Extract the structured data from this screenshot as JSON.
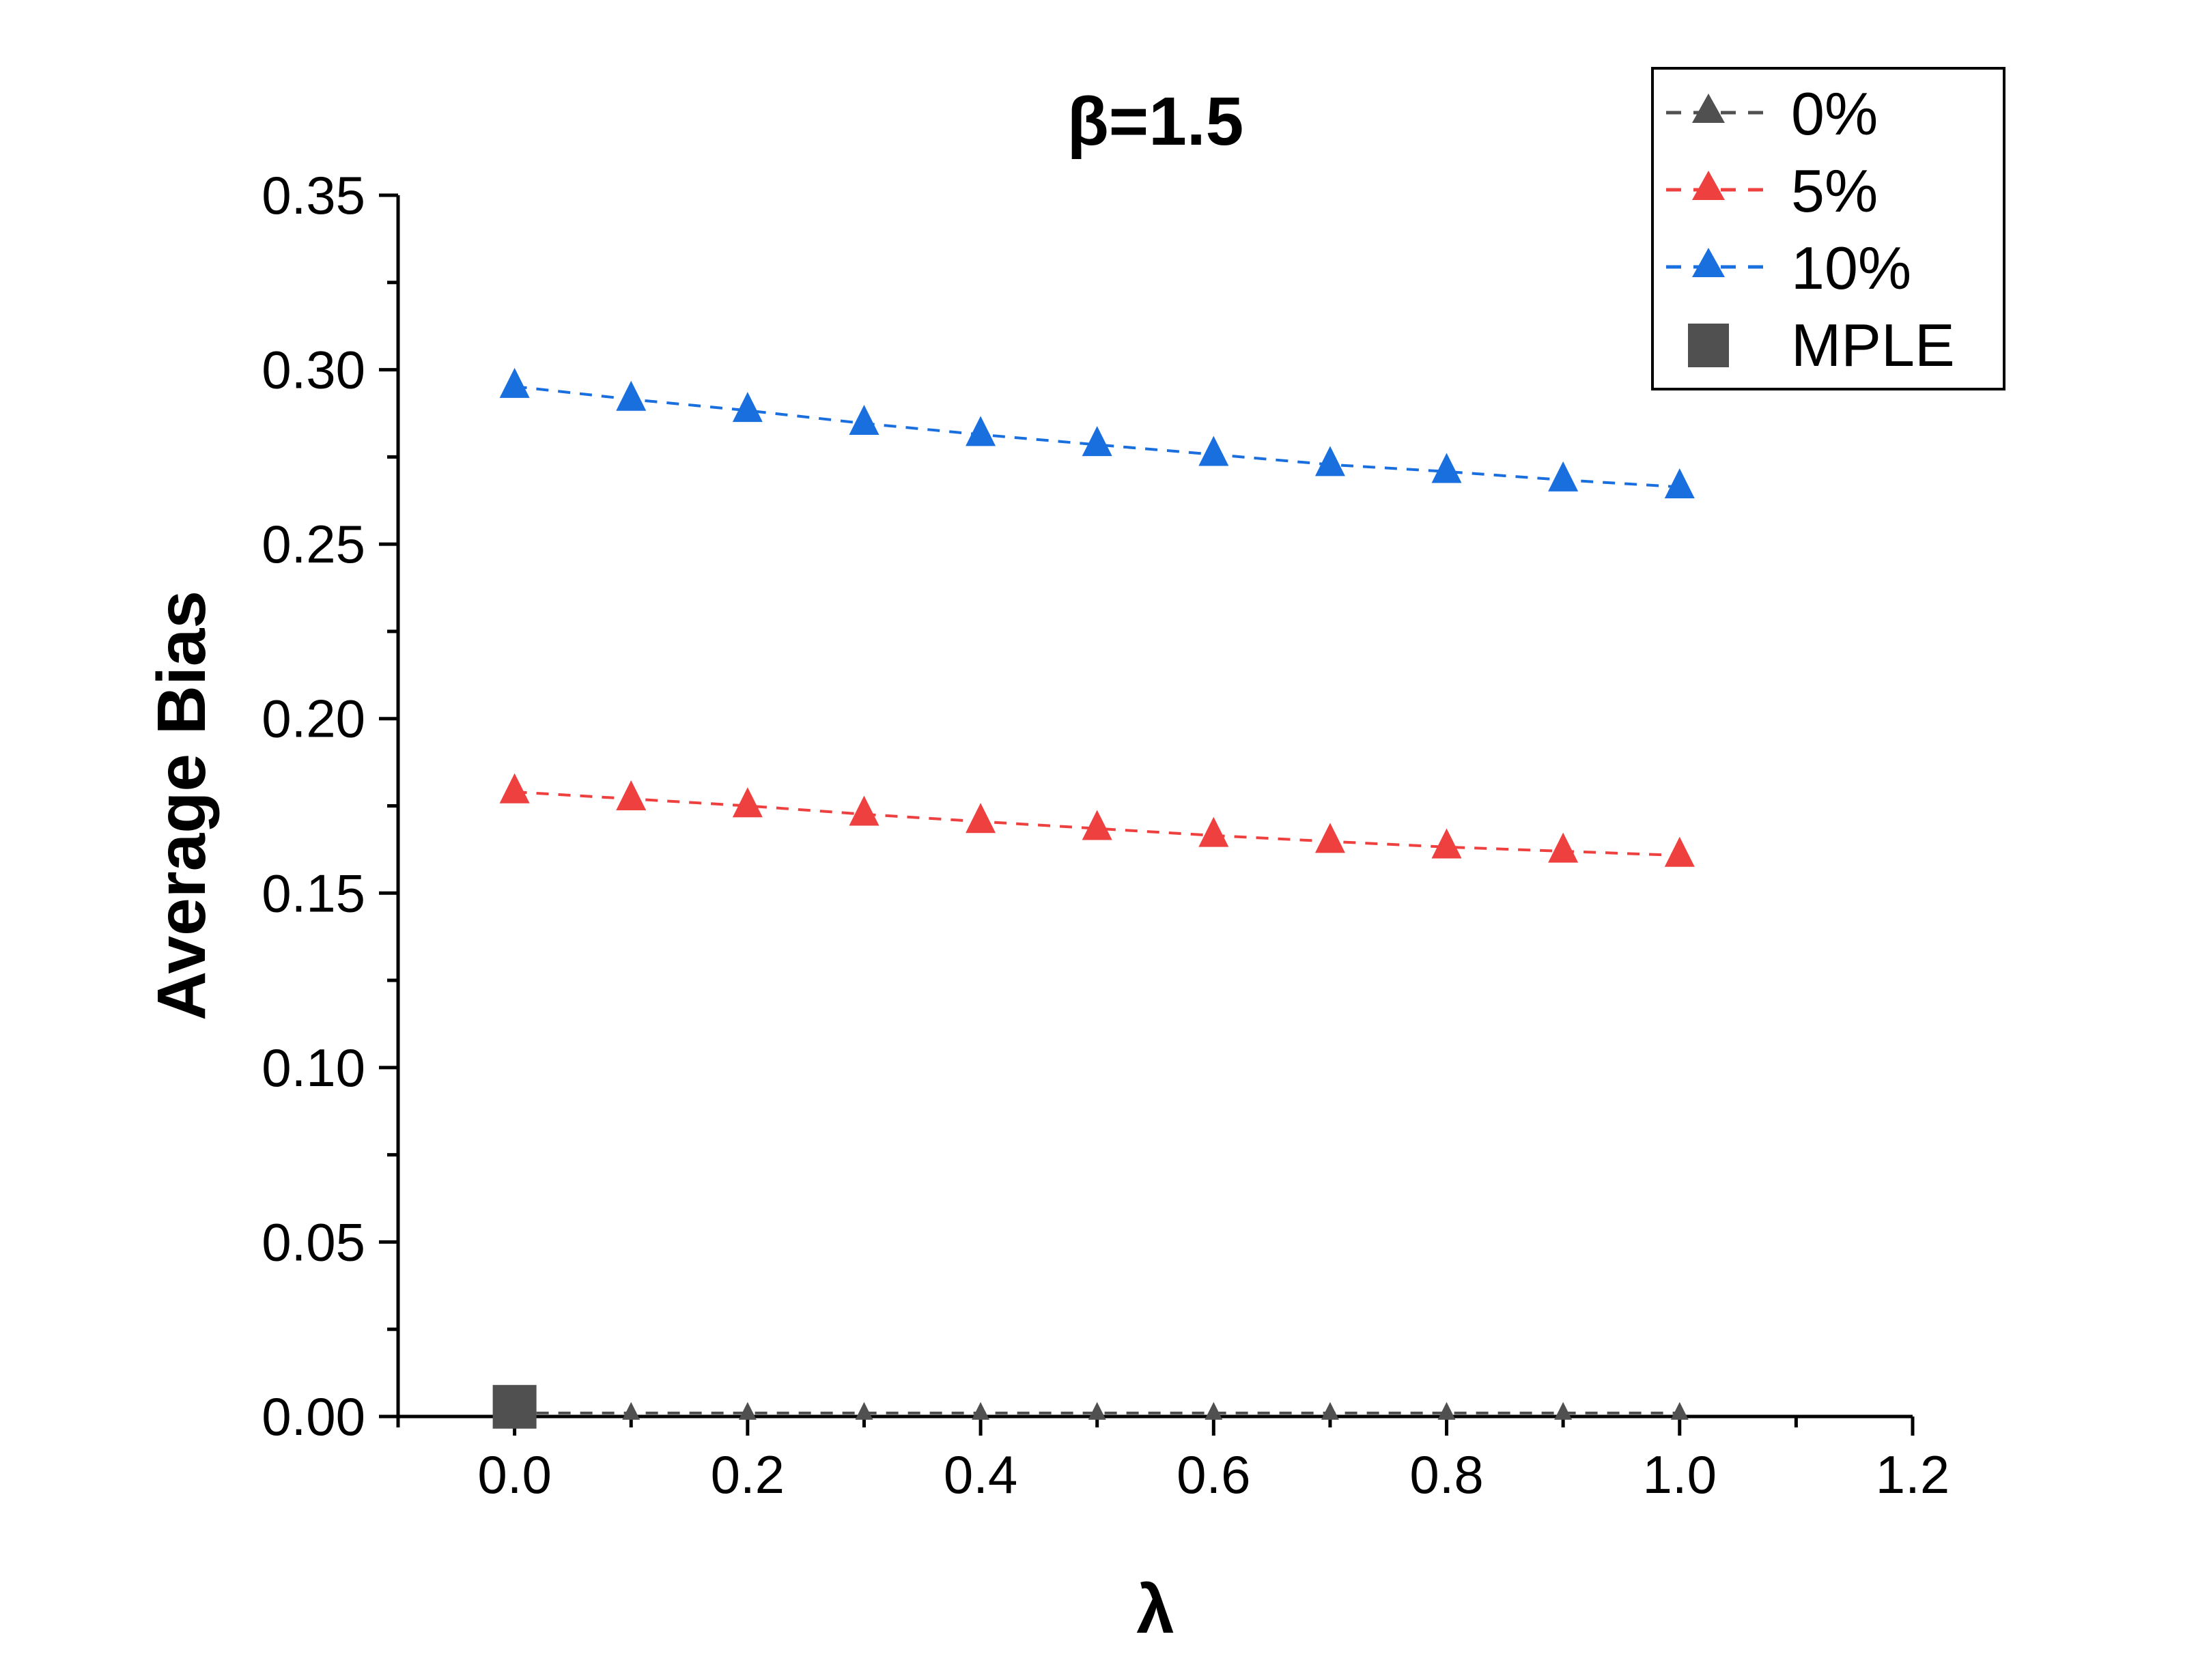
{
  "chart_data": {
    "type": "line",
    "title": "β=1.5",
    "xlabel": "λ",
    "ylabel": "Average Bias",
    "xlim": [
      -0.1,
      1.2
    ],
    "ylim": [
      0,
      0.35
    ],
    "xticks": [
      "0.0",
      "0.2",
      "0.4",
      "0.6",
      "0.8",
      "1.0",
      "1.2"
    ],
    "yticks": [
      "0.00",
      "0.05",
      "0.10",
      "0.15",
      "0.20",
      "0.25",
      "0.30",
      "0.35"
    ],
    "grid": false,
    "legend_position": "top-right",
    "x": [
      0.0,
      0.1,
      0.2,
      0.3,
      0.4,
      0.5,
      0.6,
      0.7,
      0.8,
      0.9,
      1.0
    ],
    "series": [
      {
        "name": "0%",
        "color": "#505050",
        "marker": "triangle",
        "line": "dashed",
        "values": [
          0.001,
          0.001,
          0.001,
          0.001,
          0.001,
          0.001,
          0.001,
          0.001,
          0.001,
          0.001,
          0.001
        ]
      },
      {
        "name": "5%",
        "color": "#EF4040",
        "marker": "triangle",
        "line": "dashed",
        "values": [
          0.179,
          0.177,
          0.175,
          0.1726,
          0.1705,
          0.1685,
          0.1665,
          0.1648,
          0.1632,
          0.162,
          0.1608
        ]
      },
      {
        "name": "10%",
        "color": "#1A6FDF",
        "marker": "triangle",
        "line": "dashed",
        "values": [
          0.2952,
          0.2915,
          0.2883,
          0.2846,
          0.2814,
          0.2785,
          0.2757,
          0.2728,
          0.2708,
          0.2684,
          0.2664
        ]
      },
      {
        "name": "MPLE",
        "color": "#505050",
        "marker": "square",
        "line": "none",
        "x": [
          0.0
        ],
        "values": [
          0.002
        ]
      }
    ]
  }
}
